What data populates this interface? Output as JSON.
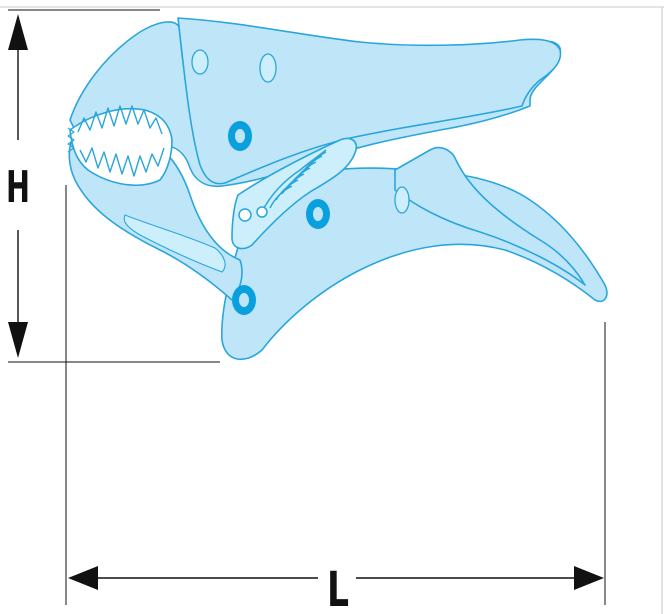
{
  "diagram": {
    "dimensions": {
      "height_label": "H",
      "length_label": "L"
    },
    "colors": {
      "tool_fill": "#bfe6f8",
      "tool_stroke": "#2aa6dc",
      "rivet": "#0aa0e0",
      "dimension_line": "#111111",
      "border": "#c8c8c8"
    }
  }
}
